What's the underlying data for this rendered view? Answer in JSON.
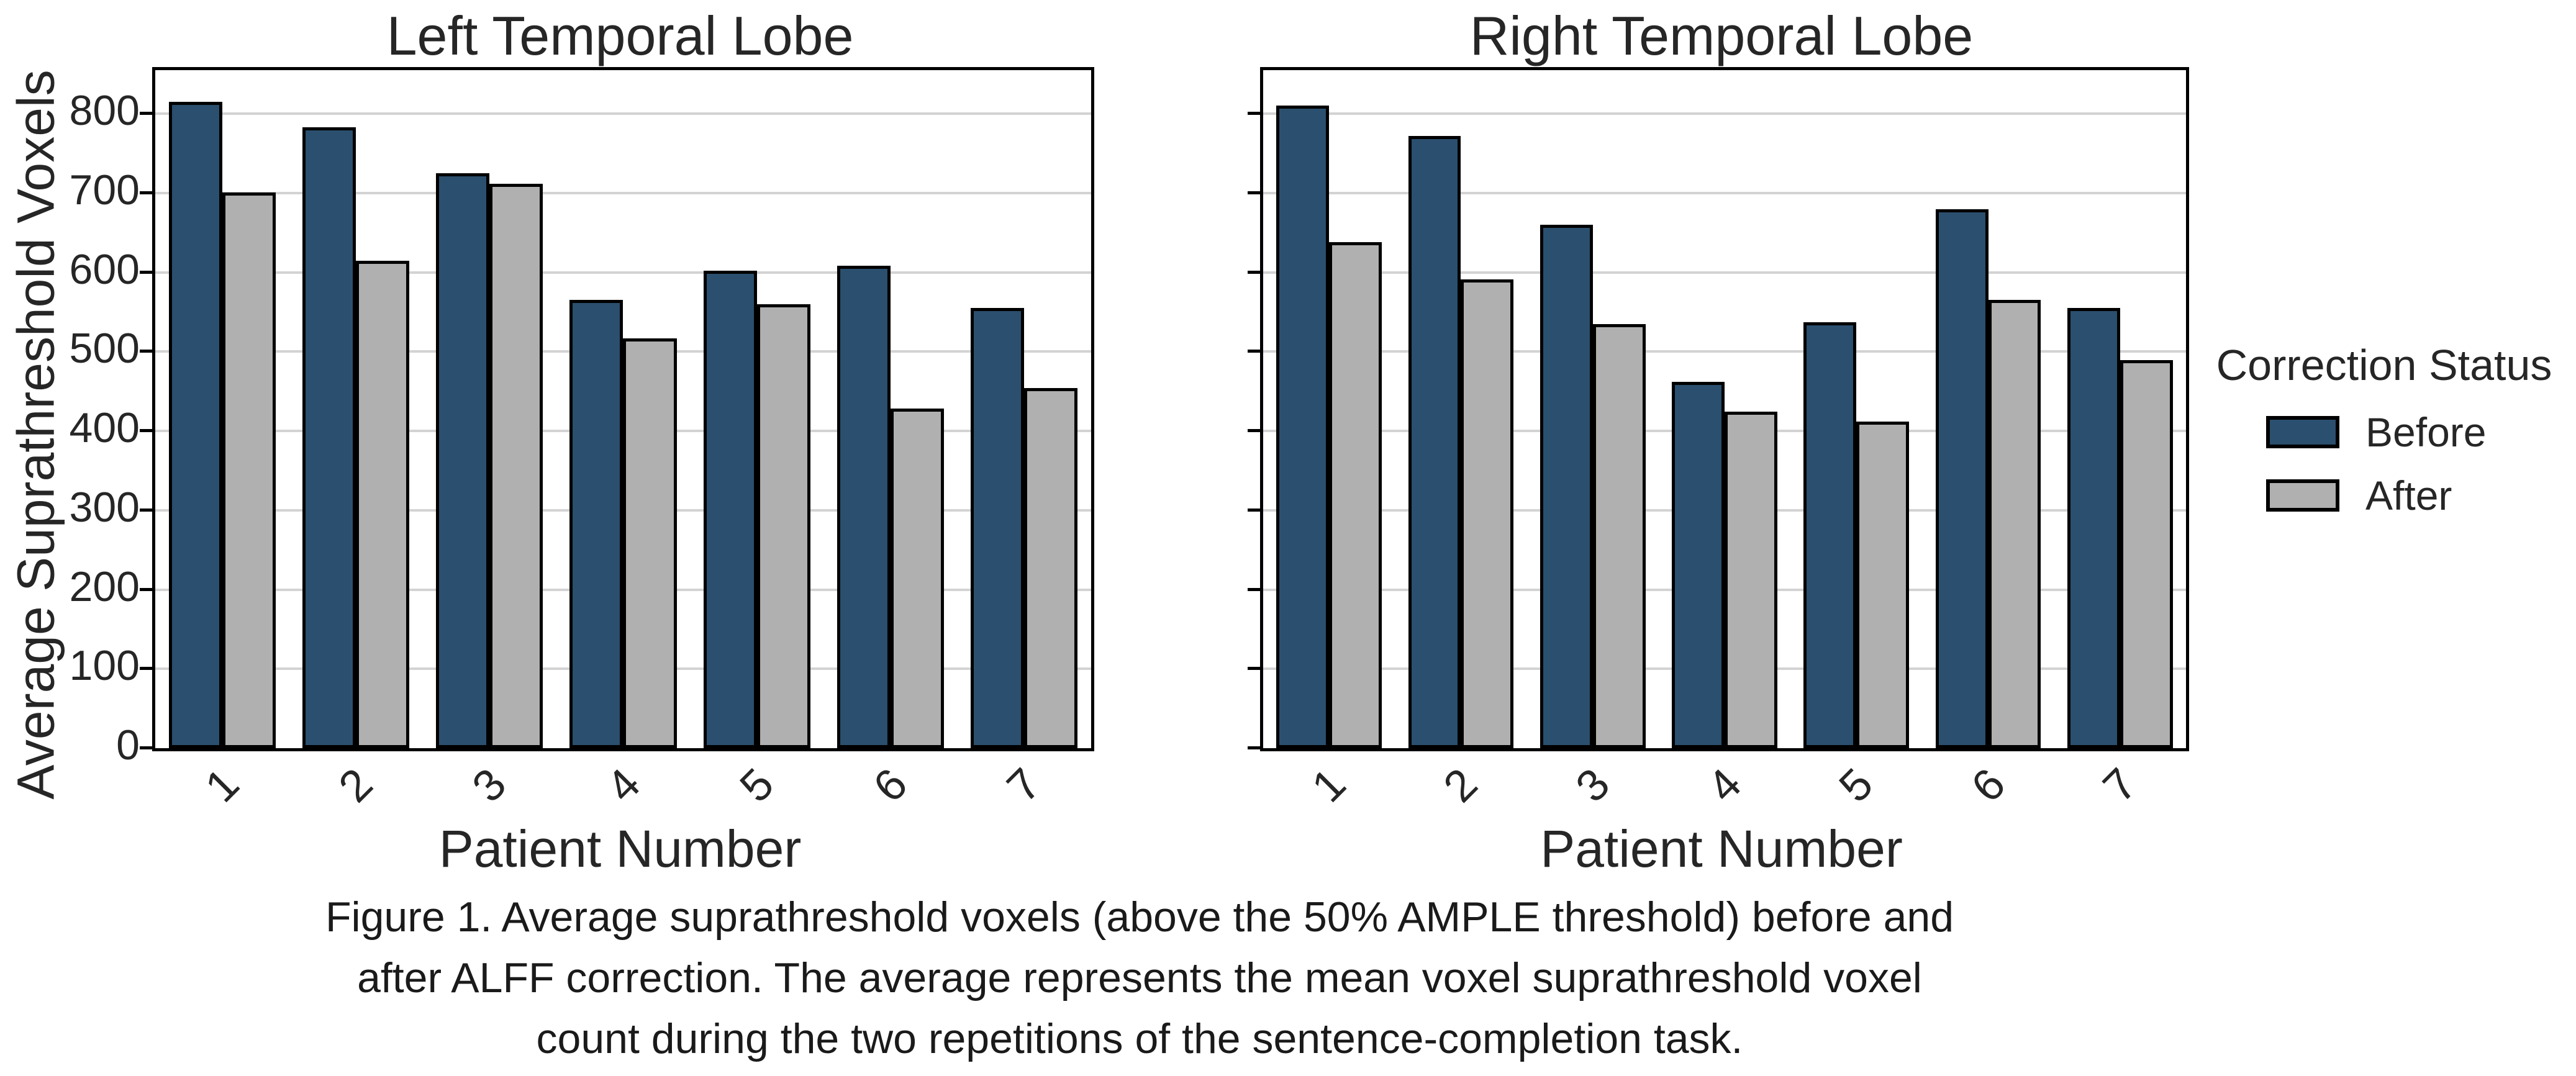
{
  "figure": {
    "ylabel": "Average Suprathreshold Voxels",
    "background": "#ffffff"
  },
  "legend": {
    "title": "Correction Status",
    "items": [
      {
        "label": "Before",
        "color": "#2B4F6E"
      },
      {
        "label": "After",
        "color": "#B0B0B0"
      }
    ]
  },
  "caption": {
    "lines": [
      "Figure 1. Average suprathreshold voxels (above the 50% AMPLE threshold) before and",
      "after ALFF correction. The average represents the mean voxel suprathreshold voxel",
      "count during the two repetitions of the sentence-completion task."
    ]
  },
  "style": {
    "bar_edge_color": "#000000",
    "grid_color": "#D3D3D3",
    "spine_color": "#000000"
  },
  "chart_data": [
    {
      "type": "bar",
      "title": "Left Temporal Lobe",
      "xlabel": "Patient Number",
      "ylabel": "Average Suprathreshold Voxels",
      "categories": [
        "1",
        "2",
        "3",
        "4",
        "5",
        "6",
        "7"
      ],
      "series": [
        {
          "name": "Before",
          "color": "#2B4F6E",
          "values": [
            815,
            783,
            725,
            565,
            602,
            608,
            555
          ]
        },
        {
          "name": "After",
          "color": "#B0B0B0",
          "values": [
            701,
            615,
            712,
            517,
            560,
            428,
            454
          ]
        }
      ],
      "ylim": [
        0,
        855
      ],
      "yticks": [
        0,
        100,
        200,
        300,
        400,
        500,
        600,
        700,
        800
      ],
      "grid": true,
      "show_ytick_labels": true,
      "legend_position": "outside-right"
    },
    {
      "type": "bar",
      "title": "Right Temporal Lobe",
      "xlabel": "Patient Number",
      "ylabel": "",
      "categories": [
        "1",
        "2",
        "3",
        "4",
        "5",
        "6",
        "7"
      ],
      "series": [
        {
          "name": "Before",
          "color": "#2B4F6E",
          "values": [
            810,
            772,
            660,
            462,
            537,
            680,
            555
          ]
        },
        {
          "name": "After",
          "color": "#B0B0B0",
          "values": [
            638,
            591,
            535,
            424,
            412,
            565,
            489
          ]
        }
      ],
      "ylim": [
        0,
        855
      ],
      "yticks": [
        0,
        100,
        200,
        300,
        400,
        500,
        600,
        700,
        800
      ],
      "grid": true,
      "show_ytick_labels": false,
      "legend_position": "outside-right"
    }
  ]
}
